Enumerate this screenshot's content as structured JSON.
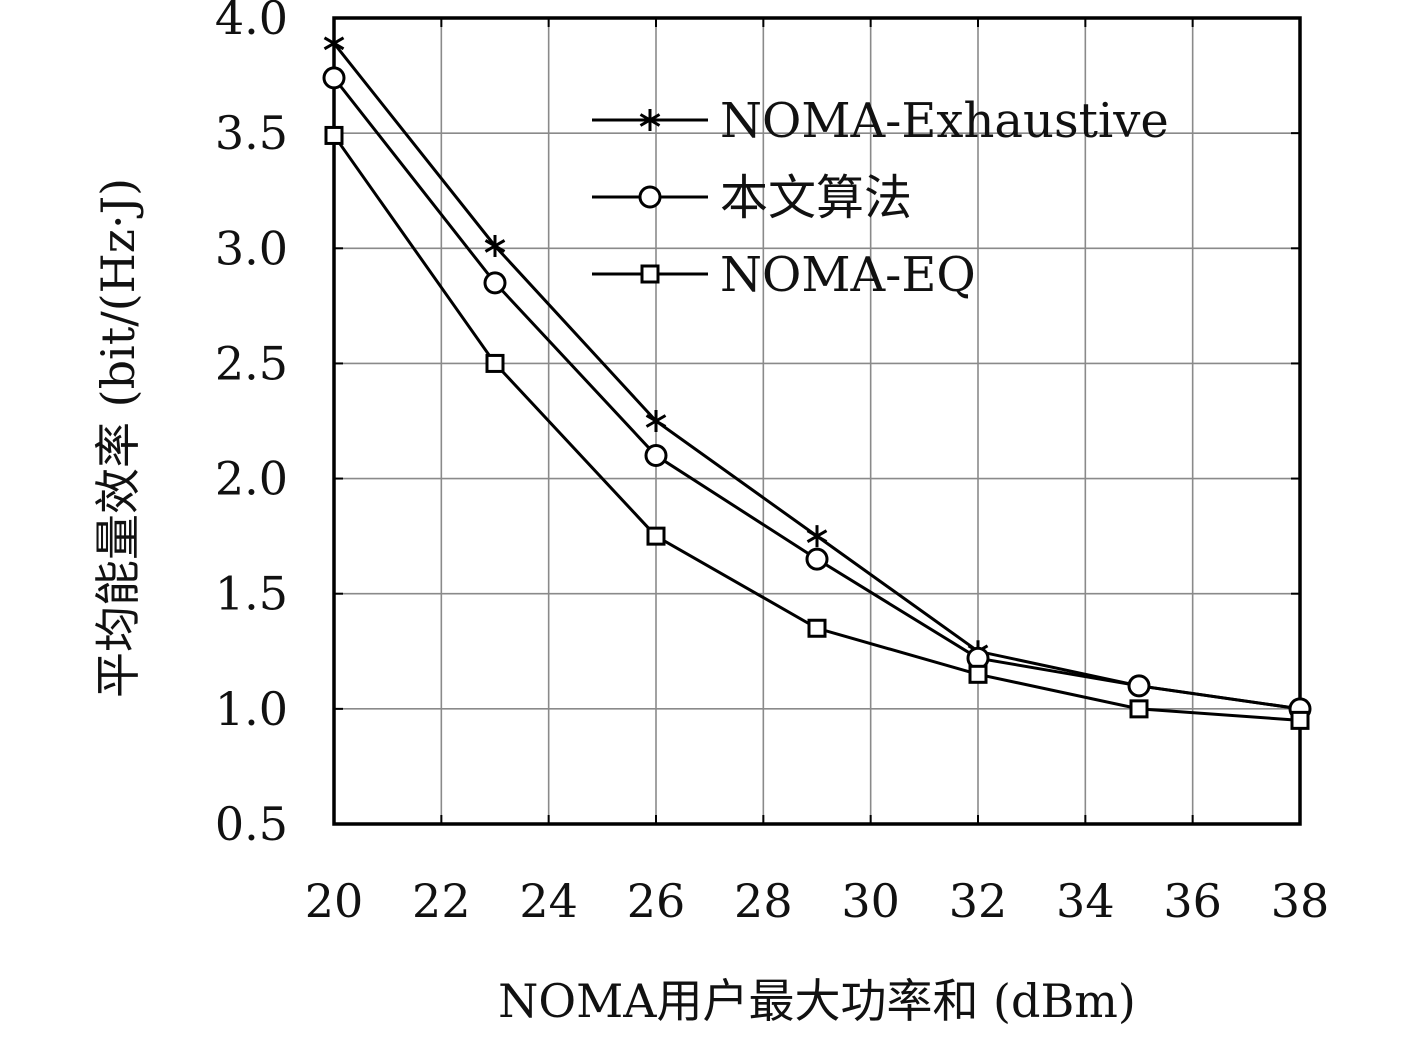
{
  "chart_data": {
    "type": "line",
    "title": "",
    "xlabel": "NOMA用户最大功率和 (dBm)",
    "ylabel": "平均能量效率 (bit/(Hz·J)",
    "xlim": [
      20,
      38
    ],
    "ylim": [
      0.5,
      4.0
    ],
    "xticks": [
      "20",
      "22",
      "24",
      "26",
      "28",
      "30",
      "32",
      "34",
      "36",
      "38"
    ],
    "yticks": [
      "0.5",
      "1.0",
      "1.5",
      "2.0",
      "2.5",
      "3.0",
      "3.5",
      "4.0"
    ],
    "grid": true,
    "legend_position": "top-right",
    "x": [
      20,
      23,
      26,
      29,
      32,
      35,
      38
    ],
    "series": [
      {
        "name": "NOMA-Exhaustive",
        "marker": "asterisk",
        "color": "#000000",
        "values": [
          3.89,
          3.01,
          2.25,
          1.75,
          1.25,
          1.1,
          1.0
        ]
      },
      {
        "name": "本文算法",
        "marker": "circle",
        "color": "#000000",
        "values": [
          3.74,
          2.85,
          2.1,
          1.65,
          1.22,
          1.1,
          1.0
        ]
      },
      {
        "name": "NOMA-EQ",
        "marker": "square",
        "color": "#000000",
        "values": [
          3.49,
          2.5,
          1.75,
          1.35,
          1.15,
          1.0,
          0.95
        ]
      }
    ]
  }
}
